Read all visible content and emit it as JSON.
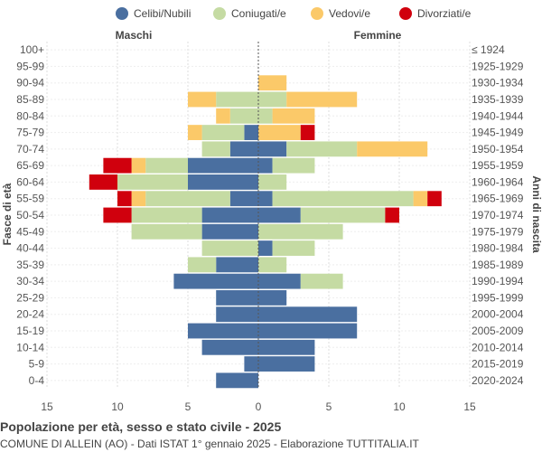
{
  "chart_data": {
    "type": "bar",
    "orientation": "horizontal-population-pyramid",
    "title": "Popolazione per età, sesso e stato civile - 2025",
    "subtitle": "COMUNE DI ALLEIN (AO) - Dati ISTAT 1° gennaio 2025 - Elaborazione TUTTITALIA.IT",
    "left_header": "Maschi",
    "right_header": "Femmine",
    "ylabel_left": "Fasce di età",
    "ylabel_right": "Anni di nascita",
    "xlim": [
      -15,
      15
    ],
    "x_ticks": [
      -15,
      -10,
      -5,
      0,
      5,
      10,
      15
    ],
    "x_tick_labels": [
      "15",
      "10",
      "5",
      "0",
      "5",
      "10",
      "15"
    ],
    "grid": true,
    "legend_position": "top",
    "categories": [
      "100+",
      "95-99",
      "90-94",
      "85-89",
      "80-84",
      "75-79",
      "70-74",
      "65-69",
      "60-64",
      "55-59",
      "50-54",
      "45-49",
      "40-44",
      "35-39",
      "30-34",
      "25-29",
      "20-24",
      "15-19",
      "10-14",
      "5-9",
      "0-4"
    ],
    "birth_years": [
      "≤ 1924",
      "1925-1929",
      "1930-1934",
      "1935-1939",
      "1940-1944",
      "1945-1949",
      "1950-1954",
      "1955-1959",
      "1960-1964",
      "1965-1969",
      "1970-1974",
      "1975-1979",
      "1980-1984",
      "1985-1989",
      "1990-1994",
      "1995-1999",
      "2000-2004",
      "2005-2009",
      "2010-2014",
      "2015-2019",
      "2020-2024"
    ],
    "series": [
      {
        "name": "Celibi/Nubili",
        "color": "#4a6fa0",
        "male": [
          0,
          0,
          0,
          0,
          0,
          1,
          2,
          5,
          5,
          2,
          4,
          4,
          0,
          3,
          6,
          3,
          3,
          5,
          4,
          1,
          3
        ],
        "female": [
          0,
          0,
          0,
          0,
          0,
          0,
          2,
          1,
          0,
          1,
          3,
          0,
          1,
          0,
          3,
          2,
          7,
          7,
          4,
          4,
          0
        ]
      },
      {
        "name": "Coniugati/e",
        "color": "#c5dba3",
        "male": [
          0,
          0,
          0,
          3,
          2,
          3,
          2,
          3,
          5,
          6,
          5,
          5,
          4,
          2,
          0,
          0,
          0,
          0,
          0,
          0,
          0
        ],
        "female": [
          0,
          0,
          0,
          2,
          1,
          0,
          5,
          3,
          2,
          10,
          6,
          6,
          3,
          2,
          3,
          0,
          0,
          0,
          0,
          0,
          0
        ]
      },
      {
        "name": "Vedovi/e",
        "color": "#fbc969",
        "male": [
          0,
          0,
          0,
          2,
          1,
          1,
          0,
          1,
          0,
          1,
          0,
          0,
          0,
          0,
          0,
          0,
          0,
          0,
          0,
          0,
          0
        ],
        "female": [
          0,
          0,
          2,
          5,
          3,
          3,
          5,
          0,
          0,
          1,
          0,
          0,
          0,
          0,
          0,
          0,
          0,
          0,
          0,
          0,
          0
        ]
      },
      {
        "name": "Divorziati/e",
        "color": "#d0000d",
        "male": [
          0,
          0,
          0,
          0,
          0,
          0,
          0,
          2,
          2,
          1,
          2,
          0,
          0,
          0,
          0,
          0,
          0,
          0,
          0,
          0,
          0
        ],
        "female": [
          0,
          0,
          0,
          0,
          0,
          1,
          0,
          0,
          0,
          1,
          1,
          0,
          0,
          0,
          0,
          0,
          0,
          0,
          0,
          0,
          0
        ]
      }
    ]
  }
}
